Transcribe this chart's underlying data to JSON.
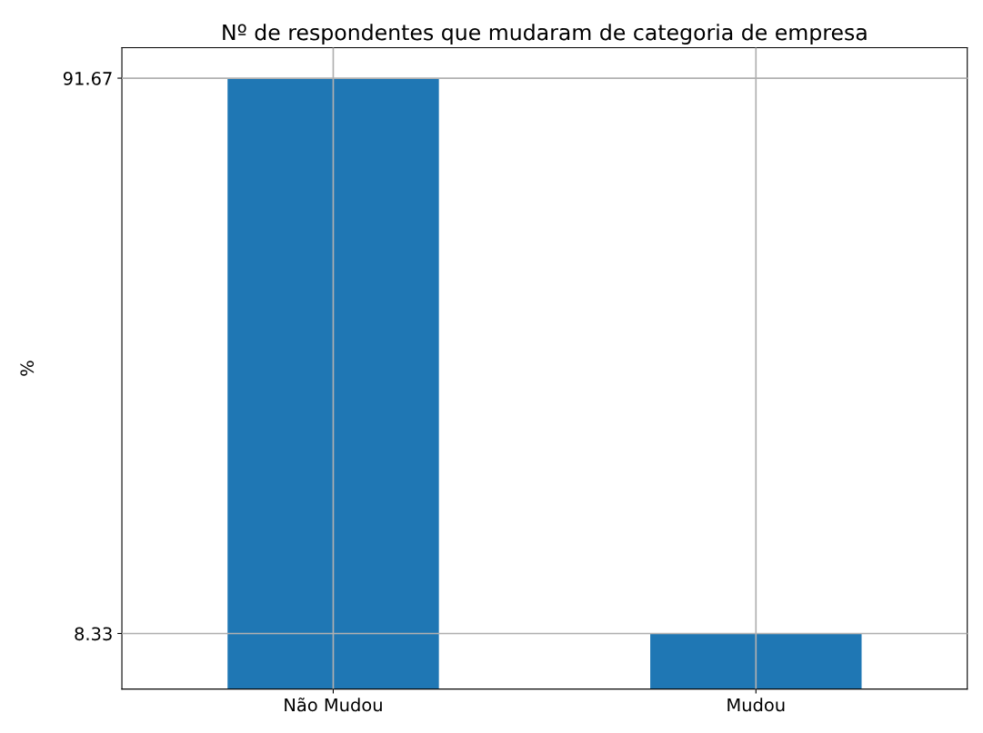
{
  "chart_data": {
    "type": "bar",
    "title": "Nº de respondentes que mudaram de categoria de empresa",
    "ylabel": "%",
    "categories": [
      "Não Mudou",
      "Mudou"
    ],
    "values": [
      91.67,
      8.33
    ],
    "color": "#1f77b4",
    "ylim": [
      0,
      96.25
    ],
    "yticks": [
      8.33,
      91.67
    ],
    "grid": true
  }
}
